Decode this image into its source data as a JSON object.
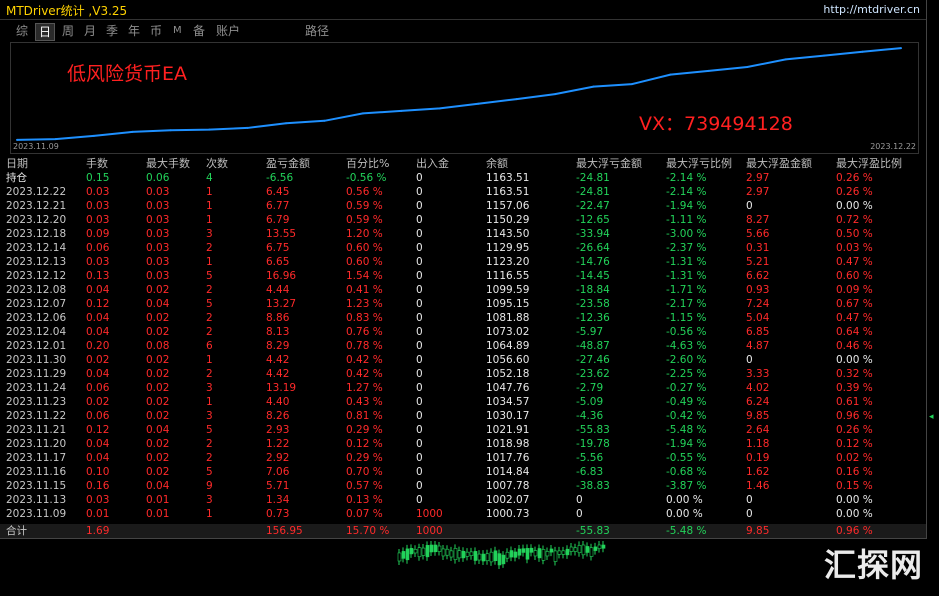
{
  "app": {
    "title": "MTDriver统计 ,V3.25",
    "url": "http://mtdriver.cn"
  },
  "tabs": [
    {
      "label": "综",
      "active": false
    },
    {
      "label": "日",
      "active": true
    },
    {
      "label": "周",
      "active": false
    },
    {
      "label": "月",
      "active": false
    },
    {
      "label": "季",
      "active": false
    },
    {
      "label": "年",
      "active": false
    },
    {
      "label": "币",
      "active": false
    },
    {
      "label": "M",
      "active": false
    },
    {
      "label": "备",
      "active": false
    },
    {
      "label": "账户",
      "active": false
    },
    {
      "label": "路径",
      "active": false
    }
  ],
  "overlay": {
    "ea_name": "低风险货币EA",
    "contact": "VX：739494128"
  },
  "chart_data": {
    "type": "line",
    "x_start_label": "2023.11.09",
    "x_end_label": "2023.12.22",
    "x": [
      "2023.11.09",
      "2023.11.13",
      "2023.11.15",
      "2023.11.16",
      "2023.11.17",
      "2023.11.20",
      "2023.11.21",
      "2023.11.22",
      "2023.11.23",
      "2023.11.24",
      "2023.11.29",
      "2023.11.30",
      "2023.12.01",
      "2023.12.04",
      "2023.12.06",
      "2023.12.07",
      "2023.12.08",
      "2023.12.12",
      "2023.12.13",
      "2023.12.14",
      "2023.12.18",
      "2023.12.20",
      "2023.12.21",
      "2023.12.22"
    ],
    "values": [
      1000.73,
      1002.07,
      1007.78,
      1014.84,
      1017.76,
      1018.98,
      1021.91,
      1030.17,
      1034.57,
      1047.76,
      1052.18,
      1056.6,
      1064.89,
      1073.02,
      1081.88,
      1095.15,
      1099.59,
      1116.55,
      1123.2,
      1129.95,
      1143.5,
      1150.29,
      1157.06,
      1163.51
    ],
    "color": "#1e90ff"
  },
  "table": {
    "headers": [
      "日期",
      "手数",
      "最大手数",
      "次数",
      "盈亏金额",
      "百分比%",
      "出入金",
      "余额",
      "最大浮亏金额",
      "最大浮亏比例",
      "最大浮盈金额",
      "最大浮盈比例"
    ],
    "position": {
      "date": "持仓",
      "lots": "0.15",
      "max_lots": "0.06",
      "count": "4",
      "pnl": "-6.56",
      "pct": "-0.56 %",
      "flow": "0",
      "balance": "1163.51",
      "max_dd": "-24.81",
      "max_dd_pct": "-2.14 %",
      "max_fp": "2.97",
      "max_fp_pct": "0.26 %"
    },
    "rows": [
      [
        "2023.12.22",
        "0.03",
        "0.03",
        "1",
        "6.45",
        "0.56 %",
        "0",
        "1163.51",
        "-24.81",
        "-2.14 %",
        "2.97",
        "0.26 %"
      ],
      [
        "2023.12.21",
        "0.03",
        "0.03",
        "1",
        "6.77",
        "0.59 %",
        "0",
        "1157.06",
        "-22.47",
        "-1.94 %",
        "0",
        "0.00 %"
      ],
      [
        "2023.12.20",
        "0.03",
        "0.03",
        "1",
        "6.79",
        "0.59 %",
        "0",
        "1150.29",
        "-12.65",
        "-1.11 %",
        "8.27",
        "0.72 %"
      ],
      [
        "2023.12.18",
        "0.09",
        "0.03",
        "3",
        "13.55",
        "1.20 %",
        "0",
        "1143.50",
        "-33.94",
        "-3.00 %",
        "5.66",
        "0.50 %"
      ],
      [
        "2023.12.14",
        "0.06",
        "0.03",
        "2",
        "6.75",
        "0.60 %",
        "0",
        "1129.95",
        "-26.64",
        "-2.37 %",
        "0.31",
        "0.03 %"
      ],
      [
        "2023.12.13",
        "0.03",
        "0.03",
        "1",
        "6.65",
        "0.60 %",
        "0",
        "1123.20",
        "-14.76",
        "-1.31 %",
        "5.21",
        "0.47 %"
      ],
      [
        "2023.12.12",
        "0.13",
        "0.03",
        "5",
        "16.96",
        "1.54 %",
        "0",
        "1116.55",
        "-14.45",
        "-1.31 %",
        "6.62",
        "0.60 %"
      ],
      [
        "2023.12.08",
        "0.04",
        "0.02",
        "2",
        "4.44",
        "0.41 %",
        "0",
        "1099.59",
        "-18.84",
        "-1.71 %",
        "0.93",
        "0.09 %"
      ],
      [
        "2023.12.07",
        "0.12",
        "0.04",
        "5",
        "13.27",
        "1.23 %",
        "0",
        "1095.15",
        "-23.58",
        "-2.17 %",
        "7.24",
        "0.67 %"
      ],
      [
        "2023.12.06",
        "0.04",
        "0.02",
        "2",
        "8.86",
        "0.83 %",
        "0",
        "1081.88",
        "-12.36",
        "-1.15 %",
        "5.04",
        "0.47 %"
      ],
      [
        "2023.12.04",
        "0.04",
        "0.02",
        "2",
        "8.13",
        "0.76 %",
        "0",
        "1073.02",
        "-5.97",
        "-0.56 %",
        "6.85",
        "0.64 %"
      ],
      [
        "2023.12.01",
        "0.20",
        "0.08",
        "6",
        "8.29",
        "0.78 %",
        "0",
        "1064.89",
        "-48.87",
        "-4.63 %",
        "4.87",
        "0.46 %"
      ],
      [
        "2023.11.30",
        "0.02",
        "0.02",
        "1",
        "4.42",
        "0.42 %",
        "0",
        "1056.60",
        "-27.46",
        "-2.60 %",
        "0",
        "0.00 %"
      ],
      [
        "2023.11.29",
        "0.04",
        "0.02",
        "2",
        "4.42",
        "0.42 %",
        "0",
        "1052.18",
        "-23.62",
        "-2.25 %",
        "3.33",
        "0.32 %"
      ],
      [
        "2023.11.24",
        "0.06",
        "0.02",
        "3",
        "13.19",
        "1.27 %",
        "0",
        "1047.76",
        "-2.79",
        "-0.27 %",
        "4.02",
        "0.39 %"
      ],
      [
        "2023.11.23",
        "0.02",
        "0.02",
        "1",
        "4.40",
        "0.43 %",
        "0",
        "1034.57",
        "-5.09",
        "-0.49 %",
        "6.24",
        "0.61 %"
      ],
      [
        "2023.11.22",
        "0.06",
        "0.02",
        "3",
        "8.26",
        "0.81 %",
        "0",
        "1030.17",
        "-4.36",
        "-0.42 %",
        "9.85",
        "0.96 %"
      ],
      [
        "2023.11.21",
        "0.12",
        "0.04",
        "5",
        "2.93",
        "0.29 %",
        "0",
        "1021.91",
        "-55.83",
        "-5.48 %",
        "2.64",
        "0.26 %"
      ],
      [
        "2023.11.20",
        "0.04",
        "0.02",
        "2",
        "1.22",
        "0.12 %",
        "0",
        "1018.98",
        "-19.78",
        "-1.94 %",
        "1.18",
        "0.12 %"
      ],
      [
        "2023.11.17",
        "0.04",
        "0.02",
        "2",
        "2.92",
        "0.29 %",
        "0",
        "1017.76",
        "-5.56",
        "-0.55 %",
        "0.19",
        "0.02 %"
      ],
      [
        "2023.11.16",
        "0.10",
        "0.02",
        "5",
        "7.06",
        "0.70 %",
        "0",
        "1014.84",
        "-6.83",
        "-0.68 %",
        "1.62",
        "0.16 %"
      ],
      [
        "2023.11.15",
        "0.16",
        "0.04",
        "9",
        "5.71",
        "0.57 %",
        "0",
        "1007.78",
        "-38.83",
        "-3.87 %",
        "1.46",
        "0.15 %"
      ],
      [
        "2023.11.13",
        "0.03",
        "0.01",
        "3",
        "1.34",
        "0.13 %",
        "0",
        "1002.07",
        "0",
        "0.00 %",
        "0",
        "0.00 %"
      ],
      [
        "2023.11.09",
        "0.01",
        "0.01",
        "1",
        "0.73",
        "0.07 %",
        "1000",
        "1000.73",
        "0",
        "0.00 %",
        "0",
        "0.00 %"
      ]
    ],
    "total": {
      "label": "合计",
      "lots": "1.69",
      "pnl": "156.95",
      "pct": "15.70 %",
      "flow": "1000",
      "max_dd": "-55.83",
      "max_dd_pct": "-5.48 %",
      "max_fp": "9.85",
      "max_fp_pct": "0.96 %"
    }
  },
  "watermark": "汇探网",
  "colors": {
    "profit": "#ff2a2a",
    "loss": "#22d35a",
    "neutral": "#e8e8e8"
  }
}
